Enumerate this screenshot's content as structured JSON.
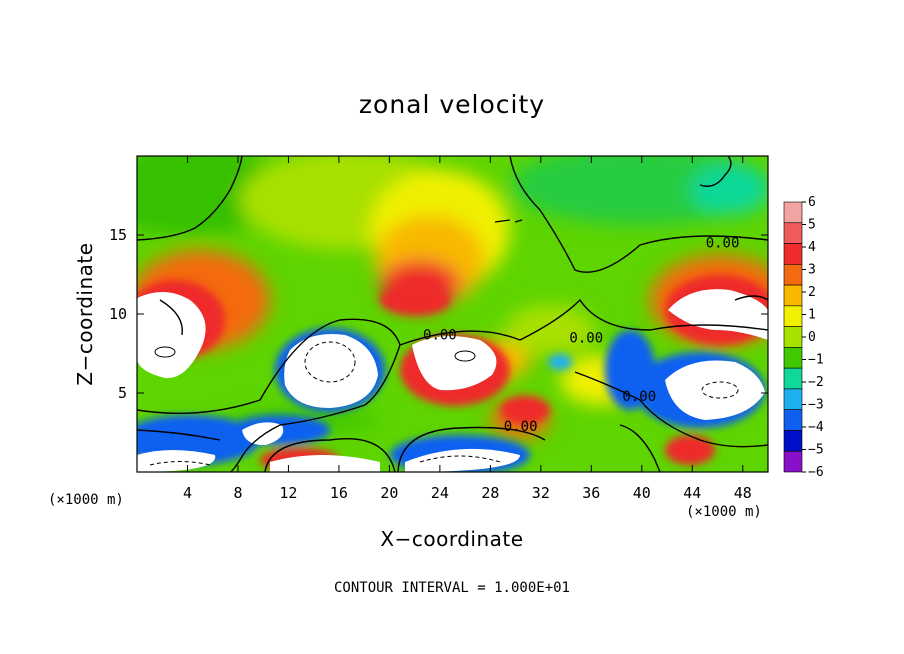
{
  "chart_data": {
    "type": "heatmap",
    "title": "zonal velocity",
    "xlabel": "X−coordinate",
    "ylabel": "Z−coordinate",
    "x_unit": "(×1000 m)",
    "y_unit": "(×1000 m)",
    "xlim": [
      0,
      50
    ],
    "ylim": [
      0,
      20
    ],
    "x_ticks": [
      4,
      8,
      12,
      16,
      20,
      24,
      28,
      32,
      36,
      40,
      44,
      48
    ],
    "y_ticks": [
      5,
      10,
      15
    ],
    "colorbar": {
      "levels": [
        6,
        5,
        4,
        3,
        2,
        1,
        0,
        -1,
        -2,
        -3,
        -4,
        -5,
        -6
      ],
      "colors": [
        "#f4a3a3",
        "#ef5a5a",
        "#ee2c2c",
        "#f46a10",
        "#f8b800",
        "#f0f000",
        "#a8e000",
        "#40c800",
        "#10d898",
        "#20b0f0",
        "#1060f0",
        "#0010c8",
        "#8a10c8"
      ],
      "labels": [
        "6",
        "5",
        "4",
        "3",
        "2",
        "1",
        "0",
        "−1",
        "−2",
        "−3",
        "−4",
        "−5",
        "−6"
      ]
    },
    "contour_labels": [
      {
        "text": "0.00",
        "x": 24.0,
        "y": 8.4
      },
      {
        "text": "0.00",
        "x": 35.6,
        "y": 8.2
      },
      {
        "text": "0.00",
        "x": 46.4,
        "y": 14.2
      },
      {
        "text": "0.00",
        "x": 39.8,
        "y": 4.5
      },
      {
        "text": "0.00",
        "x": 30.4,
        "y": 2.6
      }
    ],
    "footer": "CONTOUR INTERVAL = 1.000E+01"
  }
}
